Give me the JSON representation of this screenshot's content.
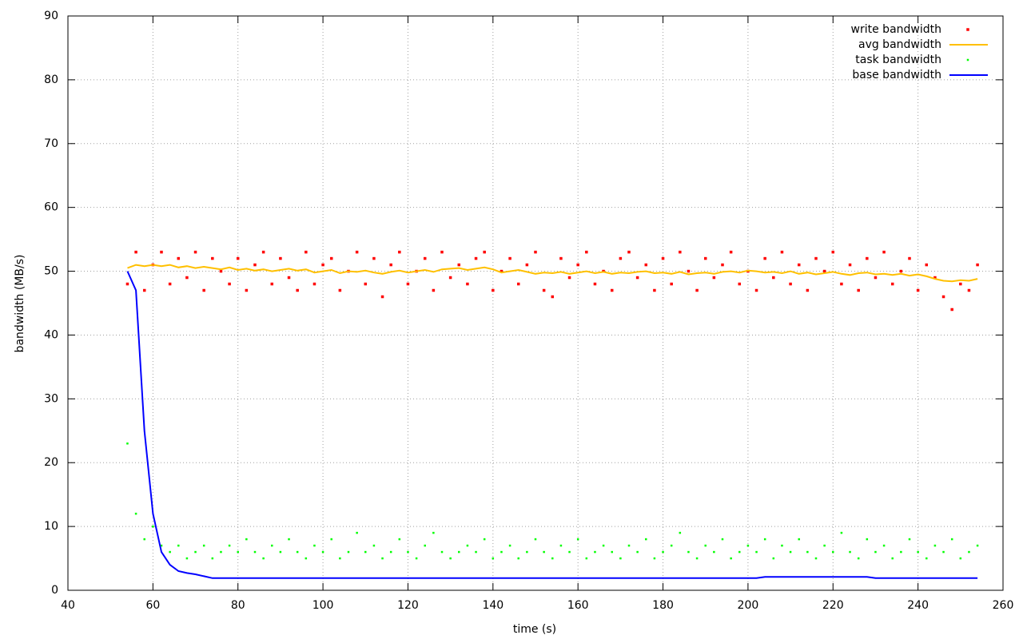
{
  "chart_data": {
    "type": "scatter-line",
    "xlabel": "time (s)",
    "ylabel": "bandwidth (MB/s)",
    "xlim": [
      40,
      260
    ],
    "xticks": [
      40,
      60,
      80,
      100,
      120,
      140,
      160,
      180,
      200,
      220,
      240,
      260
    ],
    "ylim": [
      0,
      90
    ],
    "yticks": [
      0,
      10,
      20,
      30,
      40,
      50,
      60,
      70,
      80,
      90
    ],
    "grid": true,
    "legend": "top right",
    "x": [
      54,
      56,
      58,
      60,
      62,
      64,
      66,
      68,
      70,
      72,
      74,
      76,
      78,
      80,
      82,
      84,
      86,
      88,
      90,
      92,
      94,
      96,
      98,
      100,
      102,
      104,
      106,
      108,
      110,
      112,
      114,
      116,
      118,
      120,
      122,
      124,
      126,
      128,
      130,
      132,
      134,
      136,
      138,
      140,
      142,
      144,
      146,
      148,
      150,
      152,
      154,
      156,
      158,
      160,
      162,
      164,
      166,
      168,
      170,
      172,
      174,
      176,
      178,
      180,
      182,
      184,
      186,
      188,
      190,
      192,
      194,
      196,
      198,
      200,
      202,
      204,
      206,
      208,
      210,
      212,
      214,
      216,
      218,
      220,
      222,
      224,
      226,
      228,
      230,
      232,
      234,
      236,
      238,
      240,
      242,
      244,
      246,
      248,
      250,
      252,
      254
    ],
    "series": [
      {
        "name": "write bandwidth",
        "style": "points",
        "color": "#ff0000",
        "values": [
          48,
          53,
          47,
          51,
          53,
          48,
          52,
          49,
          53,
          47,
          52,
          50,
          48,
          52,
          47,
          51,
          53,
          48,
          52,
          49,
          47,
          53,
          48,
          51,
          52,
          47,
          50,
          53,
          48,
          52,
          46,
          51,
          53,
          48,
          50,
          52,
          47,
          53,
          49,
          51,
          48,
          52,
          53,
          47,
          50,
          52,
          48,
          51,
          53,
          47,
          46,
          52,
          49,
          51,
          53,
          48,
          50,
          47,
          52,
          53,
          49,
          51,
          47,
          52,
          48,
          53,
          50,
          47,
          52,
          49,
          51,
          53,
          48,
          50,
          47,
          52,
          49,
          53,
          48,
          51,
          47,
          52,
          50,
          53,
          48,
          51,
          47,
          52,
          49,
          53,
          48,
          50,
          52,
          47,
          51,
          49,
          46,
          44,
          48,
          47,
          51
        ]
      },
      {
        "name": "avg bandwidth",
        "style": "line",
        "color": "#ffc000",
        "values": [
          50.5,
          51,
          50.8,
          51,
          50.8,
          51,
          50.6,
          50.8,
          50.5,
          50.7,
          50.5,
          50.3,
          50.6,
          50.2,
          50.4,
          50.1,
          50.3,
          50,
          50.2,
          50.4,
          50.1,
          50.3,
          49.8,
          50,
          50.2,
          49.7,
          50,
          49.9,
          50.1,
          49.8,
          49.6,
          49.9,
          50.1,
          49.8,
          50,
          50.2,
          49.9,
          50.3,
          50.4,
          50.5,
          50.2,
          50.4,
          50.6,
          50.3,
          49.8,
          50,
          50.2,
          49.9,
          49.6,
          49.8,
          49.7,
          49.9,
          49.6,
          49.8,
          50,
          49.7,
          49.9,
          49.6,
          49.8,
          49.7,
          49.9,
          50,
          49.7,
          49.8,
          49.6,
          49.9,
          49.5,
          49.7,
          49.8,
          49.6,
          49.9,
          50,
          49.8,
          50.1,
          50,
          49.8,
          49.9,
          49.7,
          50,
          49.6,
          49.8,
          49.5,
          49.7,
          49.9,
          49.6,
          49.4,
          49.7,
          49.8,
          49.5,
          49.6,
          49.4,
          49.6,
          49.3,
          49.5,
          49.2,
          48.8,
          48.5,
          48.4,
          48.6,
          48.5,
          48.8
        ]
      },
      {
        "name": "task bandwidth",
        "style": "points",
        "color": "#00ff00",
        "values": [
          23,
          12,
          8,
          10,
          7,
          6,
          7,
          5,
          6,
          7,
          5,
          6,
          7,
          6,
          8,
          6,
          5,
          7,
          6,
          8,
          6,
          5,
          7,
          6,
          8,
          5,
          6,
          9,
          6,
          7,
          5,
          6,
          8,
          6,
          5,
          7,
          9,
          6,
          5,
          6,
          7,
          6,
          8,
          5,
          6,
          7,
          5,
          6,
          8,
          6,
          5,
          7,
          6,
          8,
          5,
          6,
          7,
          6,
          5,
          7,
          6,
          8,
          5,
          6,
          7,
          9,
          6,
          5,
          7,
          6,
          8,
          5,
          6,
          7,
          6,
          8,
          5,
          7,
          6,
          8,
          6,
          5,
          7,
          6,
          9,
          6,
          5,
          8,
          6,
          7,
          5,
          6,
          8,
          6,
          5,
          7,
          6,
          8,
          5,
          6,
          7
        ]
      },
      {
        "name": "base bandwidth",
        "style": "line",
        "color": "#0000ff",
        "values": [
          50,
          47,
          25,
          12,
          6,
          4,
          3,
          2.7,
          2.5,
          2.2,
          1.9,
          1.9,
          1.9,
          1.9,
          1.9,
          1.9,
          1.9,
          1.9,
          1.9,
          1.9,
          1.9,
          1.9,
          1.9,
          1.9,
          1.9,
          1.9,
          1.9,
          1.9,
          1.9,
          1.9,
          1.9,
          1.9,
          1.9,
          1.9,
          1.9,
          1.9,
          1.9,
          1.9,
          1.9,
          1.9,
          1.9,
          1.9,
          1.9,
          1.9,
          1.9,
          1.9,
          1.9,
          1.9,
          1.9,
          1.9,
          1.9,
          1.9,
          1.9,
          1.9,
          1.9,
          1.9,
          1.9,
          1.9,
          1.9,
          1.9,
          1.9,
          1.9,
          1.9,
          1.9,
          1.9,
          1.9,
          1.9,
          1.9,
          1.9,
          1.9,
          1.9,
          1.9,
          1.9,
          1.9,
          1.9,
          2.1,
          2.1,
          2.1,
          2.1,
          2.1,
          2.1,
          2.1,
          2.1,
          2.1,
          2.1,
          2.1,
          2.1,
          2.1,
          1.9,
          1.9,
          1.9,
          1.9,
          1.9,
          1.9,
          1.9,
          1.9,
          1.9,
          1.9,
          1.9,
          1.9,
          1.9
        ]
      }
    ]
  }
}
